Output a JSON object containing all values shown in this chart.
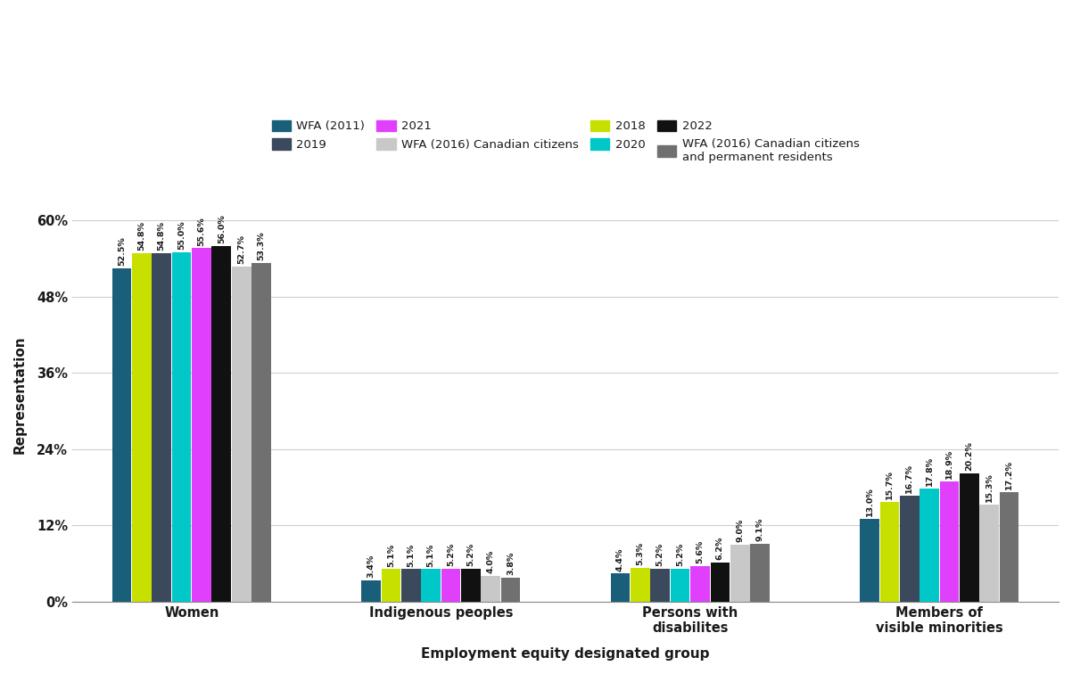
{
  "categories": [
    "Women",
    "Indigenous peoples",
    "Persons with\ndisabilites",
    "Members of\nvisible minorities"
  ],
  "series": [
    {
      "label": "WFA (2011)",
      "color": "#1a5f7a",
      "values": [
        52.5,
        3.4,
        4.4,
        13.0
      ]
    },
    {
      "label": "2018",
      "color": "#c8e000",
      "values": [
        54.8,
        5.1,
        5.3,
        15.7
      ]
    },
    {
      "label": "2019",
      "color": "#3a4a5c",
      "values": [
        54.8,
        5.1,
        5.2,
        16.7
      ]
    },
    {
      "label": "2020",
      "color": "#00c8c8",
      "values": [
        55.0,
        5.1,
        5.2,
        17.8
      ]
    },
    {
      "label": "2021",
      "color": "#e040fb",
      "values": [
        55.6,
        5.2,
        5.6,
        18.9
      ]
    },
    {
      "label": "2022",
      "color": "#111111",
      "values": [
        56.0,
        5.2,
        6.2,
        20.2
      ]
    },
    {
      "label": "WFA (2016) Canadian citizens",
      "color": "#c8c8c8",
      "values": [
        52.7,
        4.0,
        9.0,
        15.3
      ]
    },
    {
      "label": "WFA (2016) Canadian citizens\nand permanent residents",
      "color": "#707070",
      "values": [
        53.3,
        3.8,
        9.1,
        17.2
      ]
    }
  ],
  "legend_row1_indices": [
    0,
    2,
    4,
    6
  ],
  "legend_row2_indices": [
    1,
    3,
    5,
    7
  ],
  "ylabel": "Representation",
  "xlabel": "Employment equity designated group",
  "ylim": [
    0,
    65
  ],
  "yticks": [
    0,
    12,
    24,
    36,
    48,
    60
  ],
  "ytick_labels": [
    "0%",
    "12%",
    "24%",
    "36%",
    "48%",
    "60%"
  ],
  "background_color": "#ffffff",
  "grid_color": "#d0d0d0"
}
